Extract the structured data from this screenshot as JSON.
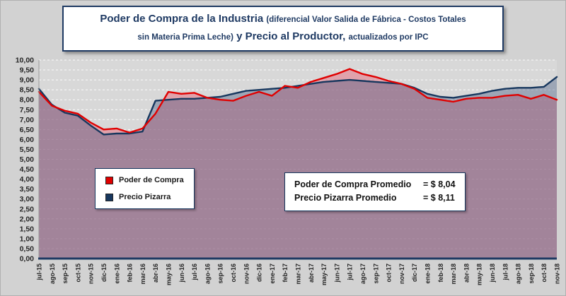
{
  "title": {
    "lines": [
      {
        "segments": [
          {
            "text": "Poder de Compra de la Industria ",
            "size": "large"
          },
          {
            "text": "(diferencial Valor Salida de Fábrica - Costos Totales",
            "size": "small"
          }
        ]
      },
      {
        "segments": [
          {
            "text": "sin Materia Prima Leche)",
            "size": "small"
          },
          {
            "text": " y Precio al Productor, ",
            "size": "large"
          },
          {
            "text": "actualizados por IPC",
            "size": "small"
          }
        ]
      }
    ]
  },
  "legend": {
    "items": [
      {
        "label": "Poder de Compra",
        "color": "#e00000"
      },
      {
        "label": "Precio Pizarra",
        "color": "#17375e"
      }
    ]
  },
  "annotation": {
    "rows": [
      {
        "label": "Poder de Compra Promedio",
        "value": "= $ 8,04"
      },
      {
        "label": "Precio Pizarra Promedio",
        "value": "= $ 8,11"
      }
    ]
  },
  "colors": {
    "navy": "#1f3a63",
    "red": "#e00000",
    "page_background": "#d2d2d2",
    "plot_background": "#d8d8d8"
  },
  "chart_data": {
    "type": "area",
    "title": "Poder de Compra de la Industria (diferencial Valor Salida de Fábrica - Costos Totales sin Materia Prima Leche) y Precio al Productor, actualizados por IPC",
    "xlabel": "",
    "ylabel": "",
    "ylim": [
      0,
      10
    ],
    "grid": "horizontal-dashed",
    "legend_position": "inside-left",
    "x": [
      "jul-15",
      "ago-15",
      "sep-15",
      "oct-15",
      "nov-15",
      "dic-15",
      "ene-16",
      "feb-16",
      "mar-16",
      "abr-16",
      "may-16",
      "jun-16",
      "jul-16",
      "ago-16",
      "sep-16",
      "oct-16",
      "nov-16",
      "dic-16",
      "ene-17",
      "feb-17",
      "mar-17",
      "abr-17",
      "may-17",
      "jun-17",
      "jul-17",
      "ago-17",
      "sep-17",
      "oct-17",
      "nov-17",
      "dic-17",
      "ene-18",
      "feb-18",
      "mar-18",
      "abr-18",
      "may-18",
      "jun-18",
      "jul-18",
      "ago-18",
      "sep-18",
      "oct-18",
      "nov-18"
    ],
    "yticks": [
      0,
      0.5,
      1,
      1.5,
      2,
      2.5,
      3,
      3.5,
      4,
      4.5,
      5,
      5.5,
      6,
      6.5,
      7,
      7.5,
      8,
      8.5,
      9,
      9.5,
      10
    ],
    "ytick_labels": [
      "0,00",
      "0,50",
      "1,00",
      "1,50",
      "2,00",
      "2,50",
      "3,00",
      "3,50",
      "4,00",
      "4,50",
      "5,00",
      "5,50",
      "6,00",
      "6,50",
      "7,00",
      "7,50",
      "8,00",
      "8,50",
      "9,00",
      "9,50",
      "10,00"
    ],
    "series": [
      {
        "name": "Poder de Compra",
        "color": "#e00000",
        "fill": "rgba(231,118,134,0.55)",
        "average_label": "$ 8,04",
        "values": [
          8.4,
          7.7,
          7.45,
          7.3,
          6.85,
          6.5,
          6.55,
          6.35,
          6.55,
          7.3,
          8.4,
          8.3,
          8.35,
          8.1,
          8.0,
          7.95,
          8.2,
          8.4,
          8.2,
          8.7,
          8.6,
          8.9,
          9.1,
          9.3,
          9.55,
          9.3,
          9.15,
          8.95,
          8.8,
          8.55,
          8.1,
          8.0,
          7.9,
          8.05,
          8.1,
          8.1,
          8.2,
          8.25,
          8.05,
          8.25,
          8.0
        ]
      },
      {
        "name": "Precio Pizarra",
        "color": "#17375e",
        "fill": "rgba(60,85,125,0.38)",
        "average_label": "$ 8,11",
        "values": [
          8.55,
          7.75,
          7.35,
          7.2,
          6.7,
          6.25,
          6.3,
          6.3,
          6.4,
          7.95,
          8.0,
          8.05,
          8.05,
          8.1,
          8.15,
          8.3,
          8.45,
          8.5,
          8.55,
          8.6,
          8.7,
          8.8,
          8.9,
          8.95,
          9.0,
          8.95,
          8.9,
          8.85,
          8.8,
          8.6,
          8.3,
          8.15,
          8.1,
          8.2,
          8.3,
          8.45,
          8.55,
          8.6,
          8.6,
          8.65,
          9.15
        ]
      }
    ]
  }
}
